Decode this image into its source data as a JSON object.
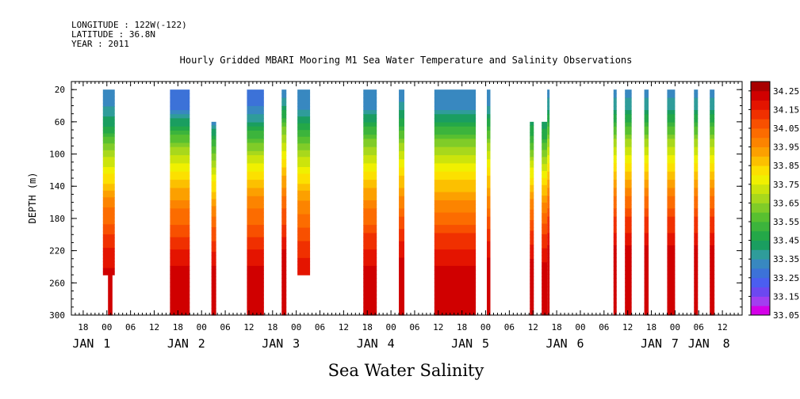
{
  "header": {
    "longitude": "LONGITUDE : 122W(-122)",
    "latitude": "LATITUDE : 36.8N",
    "year": "YEAR : 2011"
  },
  "chart_data": {
    "type": "heatmap",
    "title": "Hourly Gridded MBARI Mooring M1 Sea Water Temperature and Salinity Observations",
    "subtitle": "Sea Water Salinity",
    "xlabel": "",
    "ylabel": "DEPTH (m)",
    "ylim": [
      300,
      10
    ],
    "yticks": [
      20,
      60,
      100,
      140,
      180,
      220,
      260,
      300
    ],
    "x_unit": "hours since 2011-01-01 00:00",
    "xlim": [
      -9,
      161
    ],
    "xtick_labels": [
      {
        "x": -6,
        "label": "18"
      },
      {
        "x": 0,
        "label": "00"
      },
      {
        "x": 6,
        "label": "06"
      },
      {
        "x": 12,
        "label": "12"
      },
      {
        "x": 18,
        "label": "18"
      },
      {
        "x": 24,
        "label": "00"
      },
      {
        "x": 30,
        "label": "06"
      },
      {
        "x": 36,
        "label": "12"
      },
      {
        "x": 42,
        "label": "18"
      },
      {
        "x": 48,
        "label": "00"
      },
      {
        "x": 54,
        "label": "06"
      },
      {
        "x": 60,
        "label": "12"
      },
      {
        "x": 66,
        "label": "18"
      },
      {
        "x": 72,
        "label": "00"
      },
      {
        "x": 78,
        "label": "06"
      },
      {
        "x": 84,
        "label": "12"
      },
      {
        "x": 90,
        "label": "18"
      },
      {
        "x": 96,
        "label": "00"
      },
      {
        "x": 102,
        "label": "06"
      },
      {
        "x": 108,
        "label": "12"
      },
      {
        "x": 114,
        "label": "18"
      },
      {
        "x": 120,
        "label": "00"
      },
      {
        "x": 126,
        "label": "06"
      },
      {
        "x": 132,
        "label": "12"
      },
      {
        "x": 138,
        "label": "18"
      },
      {
        "x": 144,
        "label": "00"
      },
      {
        "x": 150,
        "label": "06"
      },
      {
        "x": 156,
        "label": "12"
      }
    ],
    "date_labels": [
      {
        "x": -6,
        "label": "JAN"
      },
      {
        "x": 0,
        "label": "1"
      },
      {
        "x": 18,
        "label": "JAN"
      },
      {
        "x": 24,
        "label": "2"
      },
      {
        "x": 42,
        "label": "JAN"
      },
      {
        "x": 48,
        "label": "3"
      },
      {
        "x": 66,
        "label": "JAN"
      },
      {
        "x": 72,
        "label": "4"
      },
      {
        "x": 90,
        "label": "JAN"
      },
      {
        "x": 96,
        "label": "5"
      },
      {
        "x": 114,
        "label": "JAN"
      },
      {
        "x": 120,
        "label": "6"
      },
      {
        "x": 138,
        "label": "JAN"
      },
      {
        "x": 144,
        "label": "7"
      },
      {
        "x": 150,
        "label": "JAN"
      },
      {
        "x": 157,
        "label": "8"
      }
    ],
    "colorbar": {
      "levels": [
        33.05,
        33.1,
        33.15,
        33.2,
        33.25,
        33.3,
        33.35,
        33.4,
        33.45,
        33.5,
        33.55,
        33.6,
        33.65,
        33.7,
        33.75,
        33.8,
        33.85,
        33.9,
        33.95,
        34.0,
        34.05,
        34.1,
        34.15,
        34.2,
        34.25,
        34.3
      ],
      "labels": [
        "33.05",
        "33.15",
        "33.25",
        "33.35",
        "33.45",
        "33.55",
        "33.65",
        "33.75",
        "33.85",
        "33.95",
        "34.05",
        "34.15",
        "34.25"
      ],
      "colors": [
        "#d400e8",
        "#a23ef0",
        "#6c48f0",
        "#4b5ef0",
        "#3c72d8",
        "#3888c0",
        "#2f9c9a",
        "#1a9e60",
        "#24a848",
        "#3cb43c",
        "#58c030",
        "#80cc28",
        "#a8d81c",
        "#cce40c",
        "#f0f000",
        "#fce000",
        "#fcc000",
        "#fca000",
        "#fc8400",
        "#fc6c00",
        "#f85000",
        "#f03000",
        "#e41400",
        "#d00000",
        "#a80000"
      ]
    },
    "profile_depths": [
      20,
      40,
      60,
      80,
      100,
      120,
      140,
      160,
      180,
      200,
      220,
      240,
      260,
      280,
      300
    ],
    "series": [
      {
        "x_start": -1,
        "x_end": 2,
        "depth_min": 20,
        "depth_max": 250,
        "salinity": [
          33.3,
          33.35,
          33.42,
          33.55,
          33.67,
          33.78,
          33.86,
          33.98,
          34.03,
          34.1,
          34.16,
          34.2
        ]
      },
      {
        "x_start": 0.3,
        "x_end": 1.4,
        "depth_min": 250,
        "depth_max": 300,
        "salinity": [
          34.2,
          34.2,
          34.2
        ]
      },
      {
        "x_start": 16,
        "x_end": 21,
        "depth_min": 20,
        "depth_max": 300,
        "salinity": [
          33.25,
          33.27,
          33.42,
          33.57,
          33.69,
          33.8,
          33.88,
          33.97,
          34.03,
          34.08,
          34.15,
          34.2,
          34.25,
          34.22,
          34.22
        ]
      },
      {
        "x_start": 26.5,
        "x_end": 27.7,
        "depth_min": 60,
        "depth_max": 300,
        "salinity": [
          33.32,
          33.47,
          33.62,
          33.72,
          33.82,
          33.92,
          34.02,
          34.08,
          34.14,
          34.2,
          34.22,
          34.2,
          34.2
        ]
      },
      {
        "x_start": 35.5,
        "x_end": 39.8,
        "depth_min": 20,
        "depth_max": 300,
        "salinity": [
          33.28,
          33.3,
          33.4,
          33.56,
          33.69,
          33.8,
          33.88,
          33.98,
          34.03,
          34.08,
          34.15,
          34.2,
          34.25,
          34.22,
          34.2
        ]
      },
      {
        "x_start": 44.3,
        "x_end": 45.5,
        "depth_min": 20,
        "depth_max": 300,
        "salinity": [
          33.3,
          33.4,
          33.55,
          33.68,
          33.78,
          33.86,
          33.95,
          34.03,
          34.08,
          34.14,
          34.2,
          34.22,
          34.2,
          34.2,
          34.2
        ]
      },
      {
        "x_start": 48.3,
        "x_end": 51.5,
        "depth_min": 20,
        "depth_max": 250,
        "salinity": [
          33.3,
          33.33,
          33.43,
          33.56,
          33.67,
          33.78,
          33.87,
          33.96,
          34.02,
          34.07,
          34.13,
          34.18
        ]
      },
      {
        "x_start": 65,
        "x_end": 68.4,
        "depth_min": 20,
        "depth_max": 300,
        "salinity": [
          33.3,
          33.33,
          33.45,
          33.58,
          33.7,
          33.8,
          33.88,
          33.97,
          34.03,
          34.1,
          34.16,
          34.2,
          34.25,
          34.22,
          34.2
        ]
      },
      {
        "x_start": 74,
        "x_end": 75.4,
        "depth_min": 20,
        "depth_max": 300,
        "salinity": [
          33.3,
          33.36,
          33.48,
          33.6,
          33.72,
          33.82,
          33.9,
          33.98,
          34.05,
          34.12,
          34.18,
          34.22,
          34.2,
          34.2,
          34.2
        ]
      },
      {
        "x_start": 83,
        "x_end": 93.5,
        "depth_min": 20,
        "depth_max": 300,
        "salinity": [
          33.3,
          33.33,
          33.45,
          33.58,
          33.7,
          33.8,
          33.88,
          33.96,
          34.03,
          34.1,
          34.16,
          34.2,
          34.25,
          34.22,
          34.2
        ]
      },
      {
        "x_start": 96.3,
        "x_end": 97.2,
        "depth_min": 20,
        "depth_max": 300,
        "salinity": [
          33.3,
          33.35,
          33.47,
          33.6,
          33.72,
          33.82,
          33.9,
          33.98,
          34.05,
          34.12,
          34.18,
          34.22,
          34.2,
          34.2,
          34.2
        ]
      },
      {
        "x_start": 107.2,
        "x_end": 108.2,
        "depth_min": 60,
        "depth_max": 300,
        "salinity": [
          33.42,
          33.52,
          33.64,
          33.76,
          33.86,
          33.96,
          34.04,
          34.11,
          34.17,
          34.22,
          34.2,
          34.2,
          34.2
        ]
      },
      {
        "x_start": 110.2,
        "x_end": 111.6,
        "depth_min": 60,
        "depth_max": 300,
        "salinity": [
          33.4,
          33.5,
          33.63,
          33.75,
          33.85,
          33.95,
          34.03,
          34.1,
          34.16,
          34.22,
          34.2,
          34.2,
          34.2
        ]
      },
      {
        "x_start": 111.6,
        "x_end": 112.2,
        "depth_min": 20,
        "depth_max": 300,
        "salinity": [
          33.32,
          33.38,
          33.5,
          33.63,
          33.75,
          33.85,
          33.95,
          34.03,
          34.1,
          34.16,
          34.22,
          34.2,
          34.2,
          34.2,
          34.2
        ]
      },
      {
        "x_start": 128.4,
        "x_end": 129.2,
        "depth_min": 20,
        "depth_max": 300,
        "salinity": [
          33.32,
          33.38,
          33.5,
          33.63,
          33.75,
          33.85,
          33.95,
          34.03,
          34.1,
          34.16,
          34.22,
          34.2,
          34.2,
          34.2,
          34.2
        ]
      },
      {
        "x_start": 131.3,
        "x_end": 133,
        "depth_min": 20,
        "depth_max": 300,
        "salinity": [
          33.32,
          33.38,
          33.5,
          33.63,
          33.75,
          33.85,
          33.95,
          34.03,
          34.1,
          34.16,
          34.22,
          34.2,
          34.2,
          34.2,
          34.2
        ]
      },
      {
        "x_start": 136.2,
        "x_end": 137.3,
        "depth_min": 20,
        "depth_max": 300,
        "salinity": [
          33.32,
          33.38,
          33.5,
          33.63,
          33.75,
          33.85,
          33.95,
          34.03,
          34.1,
          34.16,
          34.22,
          34.2,
          34.2,
          34.2,
          34.2
        ]
      },
      {
        "x_start": 142,
        "x_end": 144,
        "depth_min": 20,
        "depth_max": 300,
        "salinity": [
          33.32,
          33.38,
          33.5,
          33.63,
          33.75,
          33.85,
          33.95,
          34.03,
          34.1,
          34.16,
          34.22,
          34.2,
          34.2,
          34.2,
          34.2
        ]
      },
      {
        "x_start": 148.8,
        "x_end": 149.8,
        "depth_min": 20,
        "depth_max": 300,
        "salinity": [
          33.32,
          33.38,
          33.5,
          33.63,
          33.75,
          33.85,
          33.95,
          34.03,
          34.1,
          34.16,
          34.22,
          34.2,
          34.2,
          34.2,
          34.2
        ]
      },
      {
        "x_start": 152.8,
        "x_end": 154,
        "depth_min": 20,
        "depth_max": 300,
        "salinity": [
          33.32,
          33.38,
          33.5,
          33.63,
          33.75,
          33.85,
          33.95,
          34.03,
          34.1,
          34.16,
          34.22,
          34.2,
          34.2,
          34.2,
          34.2
        ]
      }
    ]
  }
}
